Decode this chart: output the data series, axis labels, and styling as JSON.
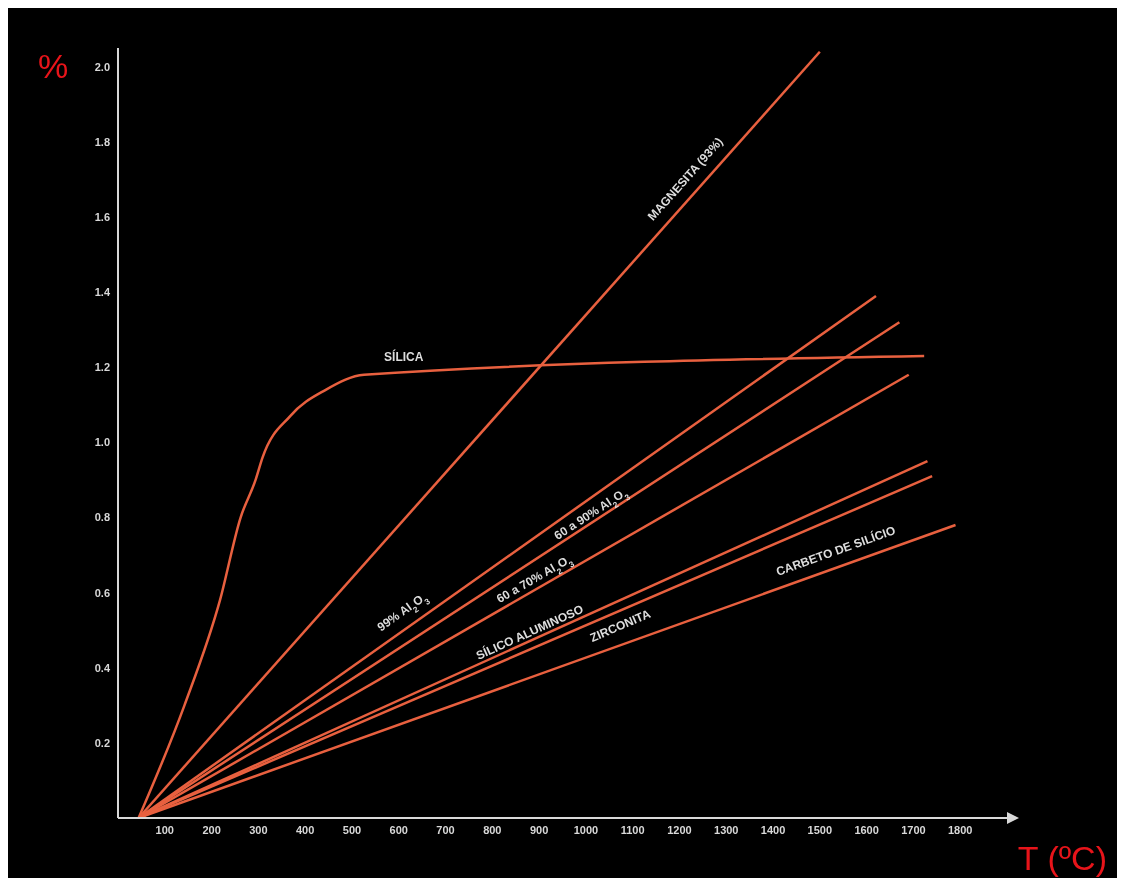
{
  "chart_data": {
    "type": "line",
    "xlabel": "T (ºC)",
    "ylabel": "%",
    "xlim": [
      0,
      1900
    ],
    "xticks": [
      100,
      200,
      300,
      400,
      500,
      600,
      700,
      800,
      900,
      1000,
      1100,
      1200,
      1300,
      1400,
      1500,
      1600,
      1700,
      1800
    ],
    "ylim": [
      0,
      2.05
    ],
    "yticks": [
      0.2,
      0.4,
      0.6,
      0.8,
      {
        "value": 1,
        "label": "1.0"
      },
      1.2,
      1.4,
      1.6,
      1.8,
      {
        "value": 2,
        "label": "2.0"
      }
    ],
    "grid": false,
    "legend": false,
    "marker": "none",
    "line_style": "solid",
    "series": [
      {
        "name": "SÍLICA",
        "color": "#e8603f",
        "x": [
          44,
          142,
          218,
          262,
          294,
          309,
          368,
          444,
          526,
          1723
        ],
        "values": [
          0,
          0.3,
          0.58,
          0.8,
          0.9,
          0.96,
          1.07,
          1.14,
          1.18,
          1.23
        ]
      },
      {
        "name": "MAGNESITA (93%)",
        "color": "#e8603f",
        "x": [
          44,
          1500
        ],
        "values": [
          0,
          2.04
        ]
      },
      {
        "name": "99% Al$_{2}$O$_{3}$",
        "color": "#e8603f",
        "x": [
          44,
          1620
        ],
        "values": [
          0,
          1.39
        ]
      },
      {
        "name": "60 a 90% Al$_{2}$O$_{3}$",
        "color": "#e8603f",
        "x": [
          44,
          1670
        ],
        "values": [
          0,
          1.32
        ]
      },
      {
        "name": "60 a 70% Al$_{2}$O$_{3}$",
        "color": "#e8603f",
        "x": [
          44,
          1690
        ],
        "values": [
          0,
          1.18
        ]
      },
      {
        "name": "SÍLICO ALUMINOSO",
        "color": "#e8603f",
        "x": [
          44,
          1730
        ],
        "values": [
          0,
          0.95
        ]
      },
      {
        "name": "ZIRCONITA",
        "color": "#e8603f",
        "x": [
          44,
          1740
        ],
        "values": [
          0,
          0.91
        ]
      },
      {
        "name": "CARBETO DE SILÍCIO",
        "color": "#e8603f",
        "x": [
          44,
          1790
        ],
        "values": [
          0,
          0.78
        ]
      }
    ]
  }
}
